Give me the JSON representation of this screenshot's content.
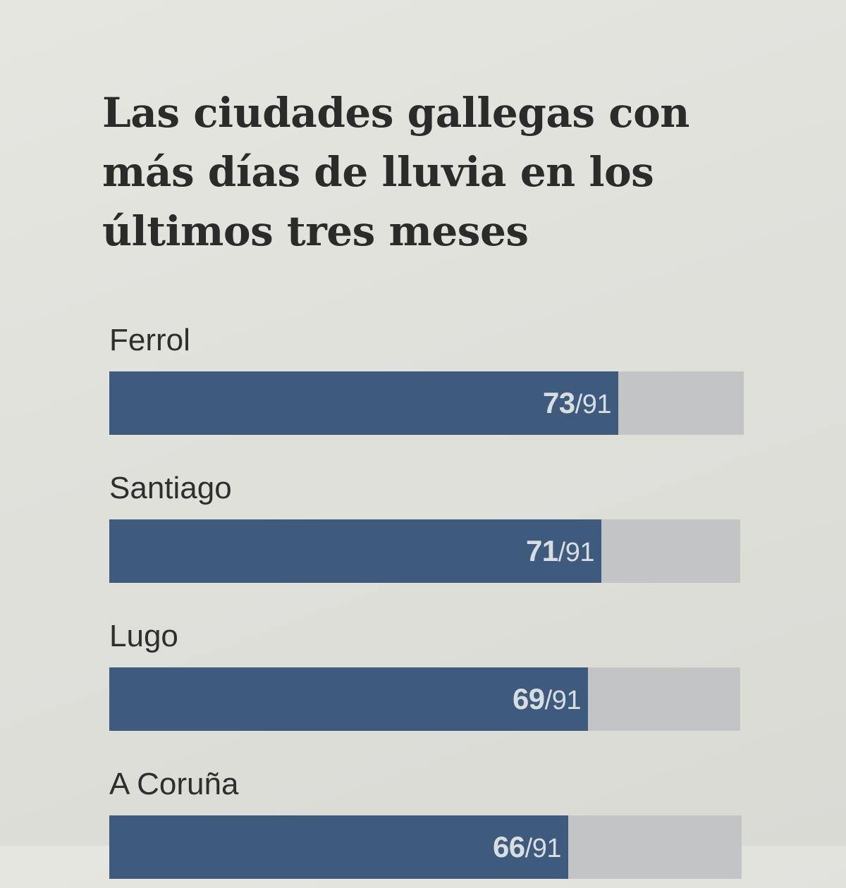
{
  "chart_data": {
    "type": "bar",
    "orientation": "horizontal",
    "title": "Las ciudades gallegas con más días de lluvia en los últimos tres meses",
    "categories": [
      "Ferrol",
      "Santiago",
      "Lugo",
      "A Coruña"
    ],
    "values": [
      73,
      71,
      69,
      66
    ],
    "max": 91,
    "value_labels": [
      "73",
      "71",
      "69",
      "66"
    ],
    "total_label": "/91",
    "xlim": [
      0,
      91
    ],
    "grid": false,
    "colors": {
      "bar": "#3e5a7c",
      "track": "#c2c4c6"
    }
  }
}
